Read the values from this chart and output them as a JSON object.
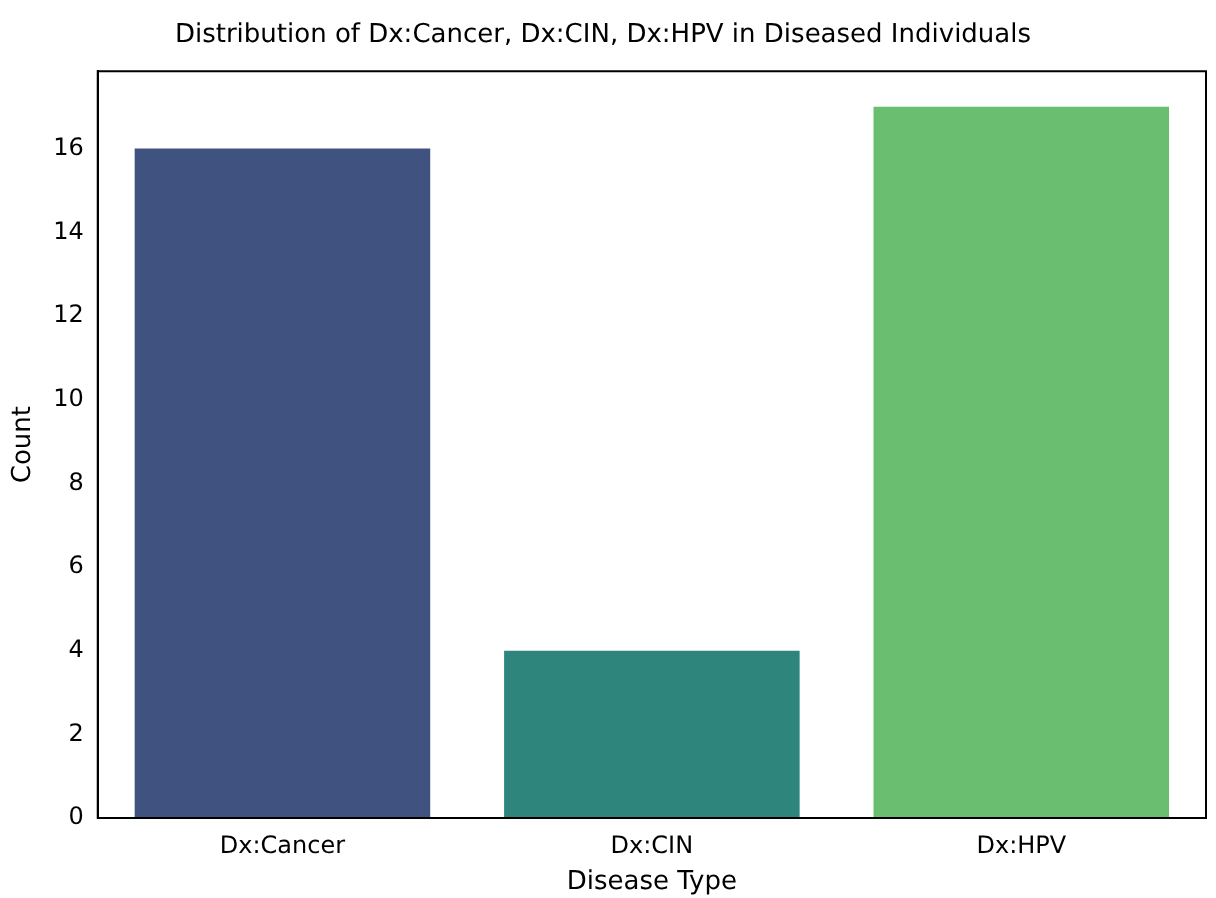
{
  "chart_data": {
    "type": "bar",
    "title": "Distribution of Dx:Cancer, Dx:CIN, Dx:HPV in Diseased Individuals",
    "xlabel": "Disease Type",
    "ylabel": "Count",
    "categories": [
      "Dx:Cancer",
      "Dx:CIN",
      "Dx:HPV"
    ],
    "values": [
      16,
      4,
      17
    ],
    "colors": [
      "#40527f",
      "#2d857c",
      "#69bf6f"
    ],
    "ylim": [
      0,
      17.85
    ],
    "yticks": [
      0,
      2,
      4,
      6,
      8,
      10,
      12,
      14,
      16
    ],
    "grid": false,
    "legend": false
  }
}
